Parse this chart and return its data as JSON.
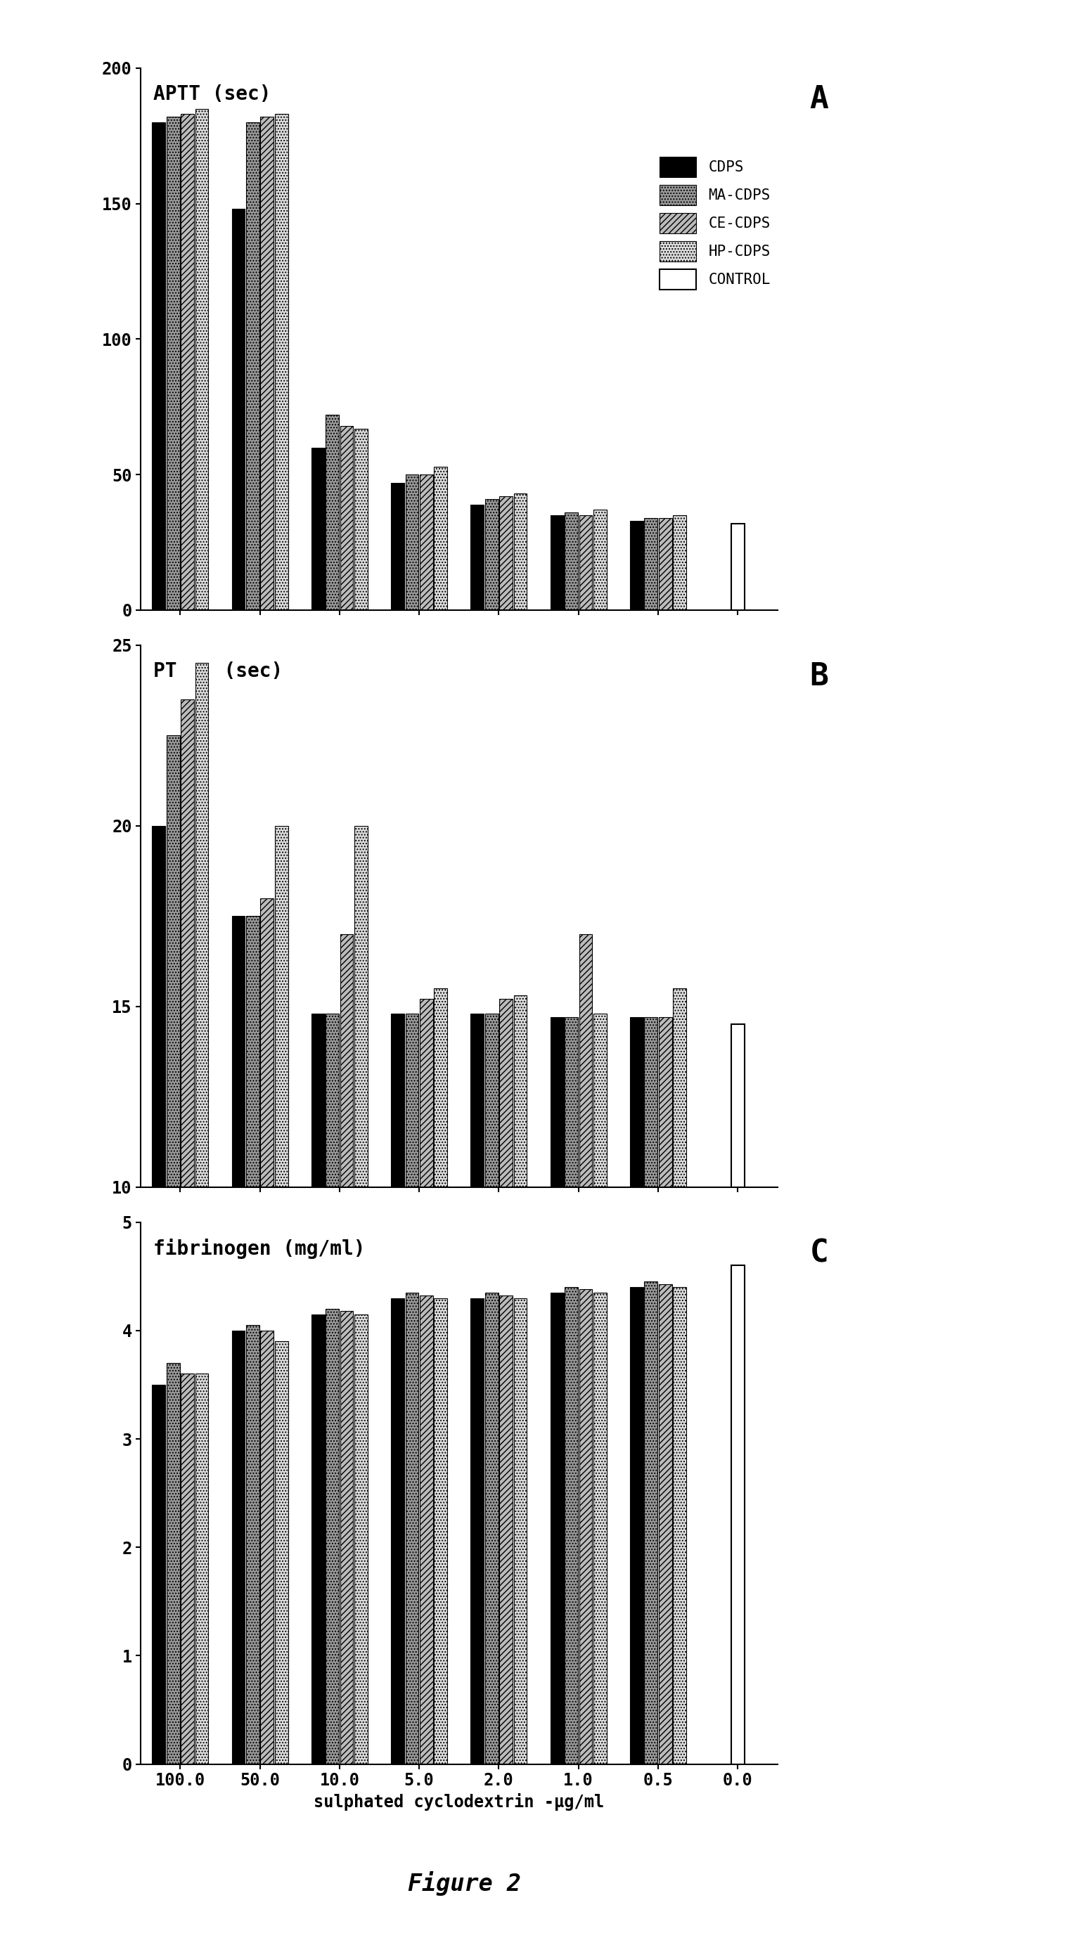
{
  "categories": [
    "100.0",
    "50.0",
    "10.0",
    "5.0",
    "2.0",
    "1.0",
    "0.5",
    "0.0"
  ],
  "panel_A": {
    "title": "APTT (sec)",
    "label": "A",
    "ylim": [
      0,
      200
    ],
    "yticks": [
      0,
      50,
      100,
      150,
      200
    ],
    "CDPS": [
      180,
      148,
      60,
      47,
      39,
      35,
      33,
      null
    ],
    "MA_CDPS": [
      182,
      180,
      72,
      50,
      41,
      36,
      34,
      null
    ],
    "CE_CDPS": [
      183,
      182,
      68,
      50,
      42,
      35,
      34,
      null
    ],
    "HP_CDPS": [
      185,
      183,
      67,
      53,
      43,
      37,
      35,
      null
    ],
    "CONTROL": [
      null,
      null,
      null,
      null,
      null,
      null,
      null,
      32
    ]
  },
  "panel_B": {
    "title": "PT    (sec)",
    "label": "B",
    "ylim": [
      10,
      25
    ],
    "yticks": [
      10,
      15,
      20,
      25
    ],
    "CDPS": [
      20.0,
      17.5,
      14.8,
      14.8,
      14.8,
      14.7,
      14.7,
      null
    ],
    "MA_CDPS": [
      22.5,
      17.5,
      14.8,
      14.8,
      14.8,
      14.7,
      14.7,
      null
    ],
    "CE_CDPS": [
      23.5,
      18.0,
      17.0,
      15.2,
      15.2,
      17.0,
      14.7,
      null
    ],
    "HP_CDPS": [
      24.5,
      20.0,
      20.0,
      15.5,
      15.3,
      14.8,
      15.5,
      null
    ],
    "CONTROL": [
      null,
      null,
      null,
      null,
      null,
      null,
      null,
      14.5
    ]
  },
  "panel_C": {
    "title": "fibrinogen (mg/ml)",
    "label": "C",
    "ylim": [
      0,
      5.0
    ],
    "yticks": [
      0,
      1.0,
      2.0,
      3.0,
      4.0,
      5.0
    ],
    "CDPS": [
      3.5,
      4.0,
      4.15,
      4.3,
      4.3,
      4.35,
      4.4,
      null
    ],
    "MA_CDPS": [
      3.7,
      4.05,
      4.2,
      4.35,
      4.35,
      4.4,
      4.45,
      null
    ],
    "CE_CDPS": [
      3.6,
      4.0,
      4.18,
      4.32,
      4.32,
      4.38,
      4.43,
      null
    ],
    "HP_CDPS": [
      3.6,
      3.9,
      4.15,
      4.3,
      4.3,
      4.35,
      4.4,
      null
    ],
    "CONTROL": [
      null,
      null,
      null,
      null,
      null,
      null,
      null,
      4.6
    ]
  },
  "xlabel": "sulphated cyclodextrin -μg/ml",
  "figure_label": "Figure 2",
  "legend_labels": [
    "CDPS",
    "MA-CDPS",
    "CE-CDPS",
    "HP-CDPS",
    "CONTROL"
  ],
  "series_keys": [
    "CDPS",
    "MA_CDPS",
    "CE_CDPS",
    "HP_CDPS",
    "CONTROL"
  ],
  "fill_colors": {
    "CDPS": "#000000",
    "MA_CDPS": "#888888",
    "CE_CDPS": "#aaaaaa",
    "HP_CDPS": "#cccccc",
    "CONTROL": "#ffffff"
  },
  "hatch_patterns": {
    "CDPS": "",
    "MA_CDPS": "....",
    "CE_CDPS": "////",
    "HP_CDPS": "....",
    "CONTROL": ""
  }
}
